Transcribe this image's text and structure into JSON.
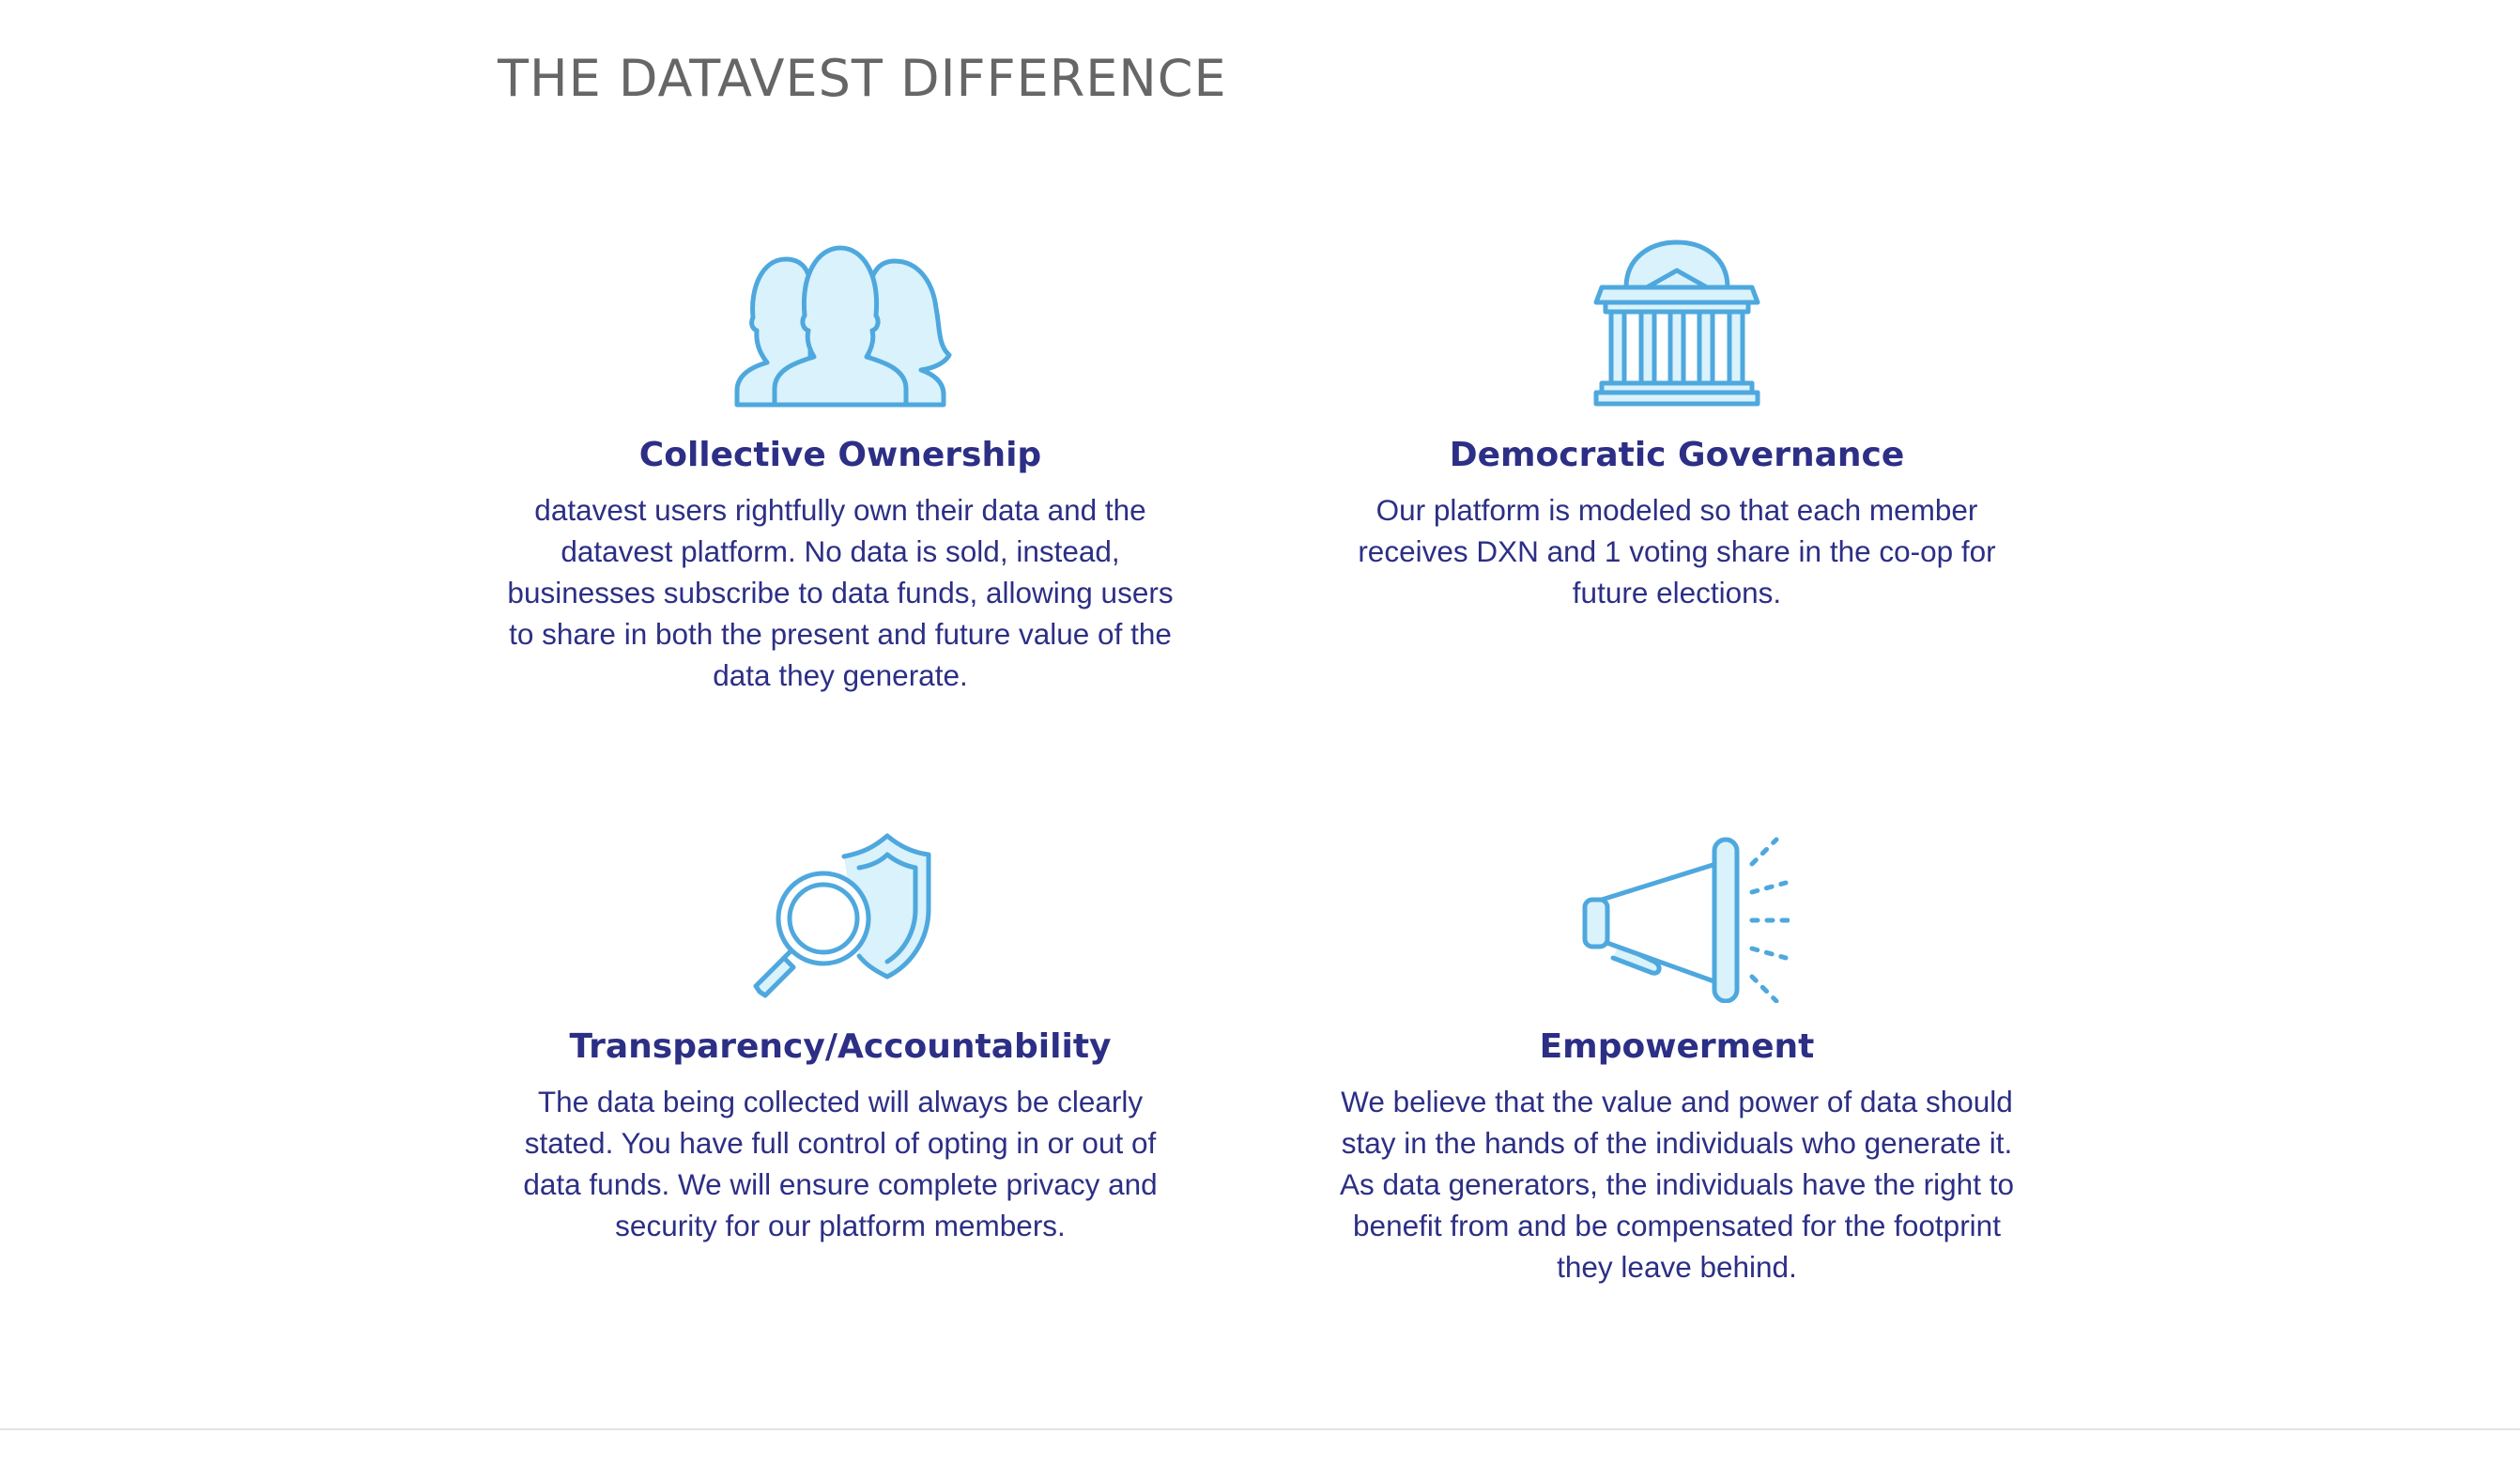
{
  "section": {
    "title": "THE DATAVEST DIFFERENCE"
  },
  "colors": {
    "heading": "#2c2f85",
    "icon_stroke": "#4ea8de",
    "icon_fill": "#d9f2fb",
    "title_gray": "#666666"
  },
  "features": [
    {
      "icon": "people-group-icon",
      "title": "Collective Ownership",
      "description": "datavest users rightfully own their data and the datavest platform. No data is sold, instead, businesses subscribe to data funds, allowing users to share in both the present and future value of the data they generate."
    },
    {
      "icon": "government-building-icon",
      "title": "Democratic Governance",
      "description": "Our platform is modeled so that each member receives DXN and 1 voting share in the co-op for future elections."
    },
    {
      "icon": "magnifier-shield-icon",
      "title": "Transparency/Accountability",
      "description": "The data being collected will always be clearly stated. You have full control of opting in or out of data funds. We will ensure complete privacy and security for our platform members."
    },
    {
      "icon": "megaphone-icon",
      "title": "Empowerment",
      "description": "We believe that the value and power of data should stay in the hands of the individuals who generate it. As data generators, the individuals have the right to benefit from and be compensated for the footprint they leave behind."
    }
  ]
}
